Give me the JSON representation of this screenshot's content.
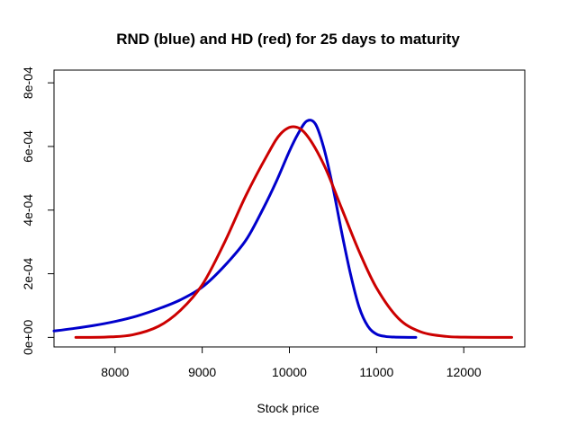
{
  "chart_data": {
    "type": "line",
    "title": "RND (blue) and HD (red) for 25 days to maturity",
    "xlabel": "Stock price",
    "ylabel": "",
    "xlim": [
      7300,
      12700
    ],
    "ylim": [
      -3e-05,
      0.00084
    ],
    "x_ticks": [
      8000,
      9000,
      10000,
      11000,
      12000
    ],
    "x_tick_labels": [
      "8000",
      "9000",
      "10000",
      "11000",
      "12000"
    ],
    "y_ticks": [
      0,
      0.0002,
      0.0004,
      0.0006,
      0.0008
    ],
    "y_tick_labels": [
      "0e+00",
      "2e-04",
      "4e-04",
      "6e-04",
      "8e-04"
    ],
    "grid": false,
    "legend": "none",
    "series": [
      {
        "color": "#0000cc",
        "x": [
          7300,
          7500,
          7750,
          8000,
          8250,
          8500,
          8750,
          9000,
          9250,
          9500,
          9700,
          9850,
          10000,
          10100,
          10200,
          10300,
          10400,
          10500,
          10600,
          10700,
          10800,
          10900,
          11000,
          11100,
          11200,
          11300,
          11450
        ],
        "y": [
          2e-05,
          2.7e-05,
          3.7e-05,
          5e-05,
          6.7e-05,
          9e-05,
          0.000118,
          0.000158,
          0.000223,
          0.000305,
          0.000405,
          0.00049,
          0.000585,
          0.00064,
          0.00068,
          0.00067,
          0.00059,
          0.00047,
          0.00033,
          0.0002,
          9.5e-05,
          3.5e-05,
          1e-05,
          3e-06,
          1e-06,
          3e-07,
          0
        ]
      },
      {
        "color": "#cc0000",
        "x": [
          7550,
          7900,
          8200,
          8500,
          8750,
          9000,
          9250,
          9500,
          9750,
          9900,
          10050,
          10200,
          10400,
          10600,
          10800,
          11000,
          11250,
          11500,
          11800,
          12100,
          12550
        ],
        "y": [
          0,
          1e-06,
          8e-06,
          3.5e-05,
          8.5e-05,
          0.000165,
          0.000295,
          0.000445,
          0.000575,
          0.00064,
          0.000662,
          0.000635,
          0.00054,
          0.000405,
          0.00027,
          0.000155,
          6e-05,
          1.8e-05,
          3e-06,
          5e-07,
          0
        ]
      }
    ]
  }
}
